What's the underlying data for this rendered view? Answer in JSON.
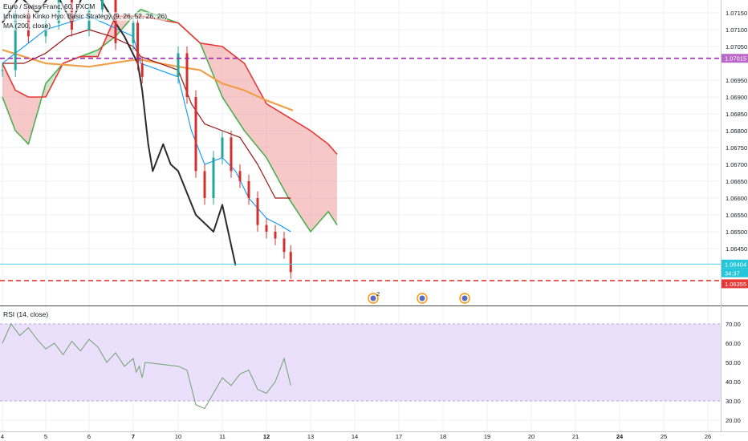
{
  "legend": {
    "symbol": "Euro / Swiss Franc, 60, FXCM",
    "ichimoku": "Ichimoku Kinko Hyo: Basic Strategy (9, 26, 52, 26, 26)",
    "ma": "MA (200, close)",
    "rsi": "RSI (14, close)"
  },
  "price_badges": {
    "level_line": "1.07015",
    "current_price": "1.06404",
    "countdown": "34:37",
    "stop_level": "1.06355"
  },
  "event_markers": [
    {
      "label": "2",
      "day": "14"
    },
    {
      "label": "",
      "day": "17"
    },
    {
      "label": "",
      "day": "18"
    }
  ],
  "colors": {
    "candles": "#d32f2f",
    "candles_up": "#26a69a",
    "conversion_line": "#0496ff",
    "base_line": "#991515",
    "lagging_span": "#2b2b2b",
    "span_a": "#4caf50",
    "span_b": "#e53935",
    "cloud_bull": "#a5d6a7",
    "cloud_bear": "#ef9a9a",
    "ma200": "#f0a04b",
    "level_line": "#9c27b0",
    "stop_line": "#e53935",
    "rsi_line": "#7aa57a",
    "rsi_band": "#e8dafc"
  },
  "chart_data": [
    {
      "type": "line",
      "title": "Euro / Swiss Franc, 60, FXCM",
      "x_unit": "day of month (hourly bars)",
      "x_ticks": [
        "4",
        "5",
        "6",
        "7",
        "10",
        "11",
        "12",
        "13",
        "14",
        "17",
        "18",
        "19",
        "20",
        "21",
        "24",
        "25",
        "26"
      ],
      "ylim": [
        1.063,
        1.076
      ],
      "y_ticks": [
        "1.07150",
        "1.07100",
        "1.07050",
        "1.06950",
        "1.06900",
        "1.06850",
        "1.06800",
        "1.06750",
        "1.06700",
        "1.06650",
        "1.06600",
        "1.06550",
        "1.06500",
        "1.06450"
      ],
      "horizontal_levels": [
        {
          "value": 1.07015,
          "style": "dashed",
          "color": "#9c27b0"
        },
        {
          "value": 1.06404,
          "style": "solid",
          "color": "#4dd0e1"
        },
        {
          "value": 1.06355,
          "style": "dashed",
          "color": "#e53935"
        }
      ],
      "series": [
        {
          "name": "Price",
          "style": "candles",
          "x": [
            4.0,
            4.3,
            4.6,
            5.0,
            5.3,
            5.6,
            6.0,
            6.3,
            6.6,
            7.0,
            7.3,
            7.6,
            10.0,
            10.2,
            10.4,
            10.6,
            10.8,
            11.0,
            11.2,
            11.4,
            11.6,
            11.8,
            12.0,
            12.2,
            12.4,
            12.55
          ],
          "y": [
            1.0698,
            1.0715,
            1.0708,
            1.0712,
            1.072,
            1.071,
            1.0716,
            1.0725,
            1.0706,
            1.0712,
            1.07,
            1.0696,
            1.0703,
            1.069,
            1.0668,
            1.066,
            1.0672,
            1.0678,
            1.0668,
            1.0665,
            1.066,
            1.0652,
            1.065,
            1.0648,
            1.0644,
            1.0638
          ]
        },
        {
          "name": "Conversion line",
          "x": [
            4.0,
            4.6,
            5.0,
            5.5,
            6.0,
            6.5,
            7.0,
            7.5,
            10.0,
            10.3,
            10.6,
            11.0,
            11.3,
            11.6,
            12.0,
            12.3,
            12.55
          ],
          "y": [
            1.07,
            1.0706,
            1.071,
            1.0712,
            1.0714,
            1.0711,
            1.0708,
            1.07,
            1.0696,
            1.068,
            1.067,
            1.0672,
            1.0668,
            1.066,
            1.0654,
            1.0652,
            1.065
          ]
        },
        {
          "name": "Base line",
          "x": [
            4.0,
            4.5,
            5.0,
            5.5,
            6.0,
            6.5,
            7.0,
            7.5,
            10.0,
            10.3,
            10.6,
            11.0,
            11.4,
            11.8,
            12.2,
            12.55
          ],
          "y": [
            1.07,
            1.07,
            1.0703,
            1.0708,
            1.071,
            1.0708,
            1.0705,
            1.0702,
            1.0698,
            1.0688,
            1.0682,
            1.068,
            1.0678,
            1.067,
            1.066,
            1.066
          ]
        },
        {
          "name": "Lagging span",
          "x": [
            4.0,
            4.4,
            4.8,
            5.2,
            5.6,
            6.0,
            6.4,
            6.8,
            7.3,
            7.6,
            8.0,
            8.3,
            9.0,
            9.5,
            10.0,
            10.4,
            10.8,
            11.0,
            11.3
          ],
          "y": [
            1.0712,
            1.072,
            1.0715,
            1.0722,
            1.0712,
            1.0725,
            1.0716,
            1.0708,
            1.07,
            1.0692,
            1.0676,
            1.0668,
            1.0676,
            1.067,
            1.0668,
            1.0655,
            1.065,
            1.0658,
            1.064
          ]
        },
        {
          "name": "Leading span A",
          "x": [
            4.0,
            4.3,
            4.6,
            5.0,
            5.4,
            5.8,
            6.2,
            6.6,
            7.0,
            7.5,
            10.0,
            10.5,
            11.0,
            11.5,
            12.0,
            12.5,
            13.0,
            13.4,
            13.6
          ],
          "y": [
            1.069,
            1.068,
            1.0676,
            1.0694,
            1.07,
            1.0702,
            1.0704,
            1.0708,
            1.0714,
            1.0716,
            1.0712,
            1.0706,
            1.069,
            1.068,
            1.0672,
            1.066,
            1.065,
            1.0656,
            1.0652
          ]
        },
        {
          "name": "Leading span B",
          "x": [
            4.0,
            4.3,
            4.6,
            5.0,
            5.4,
            5.8,
            6.2,
            6.6,
            7.0,
            7.5,
            10.0,
            10.5,
            11.0,
            11.5,
            12.0,
            12.5,
            13.0,
            13.4,
            13.6
          ],
          "y": [
            1.07,
            1.0692,
            1.069,
            1.069,
            1.07,
            1.0702,
            1.0702,
            1.0714,
            1.0714,
            1.0714,
            1.0712,
            1.0706,
            1.0705,
            1.07,
            1.0688,
            1.0684,
            1.068,
            1.0676,
            1.0673
          ]
        },
        {
          "name": "MA (200, close)",
          "x": [
            4.0,
            5.0,
            6.0,
            7.0,
            7.6,
            10.0,
            10.5,
            11.0,
            11.5,
            12.0,
            12.6
          ],
          "y": [
            1.0704,
            1.07,
            1.0699,
            1.0701,
            1.0701,
            1.0699,
            1.0698,
            1.0694,
            1.0692,
            1.0689,
            1.0686
          ]
        }
      ]
    },
    {
      "type": "line",
      "title": "RSI (14, close)",
      "ylim": [
        18,
        74
      ],
      "y_ticks": [
        "70.00",
        "60.00",
        "50.00",
        "40.00",
        "30.00",
        "20.00"
      ],
      "band": [
        30,
        70
      ],
      "series": [
        {
          "name": "RSI",
          "x": [
            4.0,
            4.2,
            4.4,
            4.6,
            4.8,
            5.0,
            5.2,
            5.4,
            5.6,
            5.8,
            6.0,
            6.2,
            6.4,
            6.6,
            6.8,
            7.0,
            7.2,
            7.4,
            7.6,
            7.8,
            10.0,
            10.2,
            10.4,
            10.6,
            10.8,
            11.0,
            11.2,
            11.4,
            11.6,
            11.8,
            12.0,
            12.2,
            12.4,
            12.55
          ],
          "y": [
            60,
            70,
            64,
            68,
            62,
            57,
            60,
            54,
            61,
            56,
            62,
            58,
            50,
            55,
            48,
            52,
            45,
            48,
            42,
            50,
            48,
            46,
            28,
            26,
            34,
            42,
            38,
            44,
            46,
            36,
            34,
            40,
            52,
            38
          ]
        }
      ]
    }
  ]
}
